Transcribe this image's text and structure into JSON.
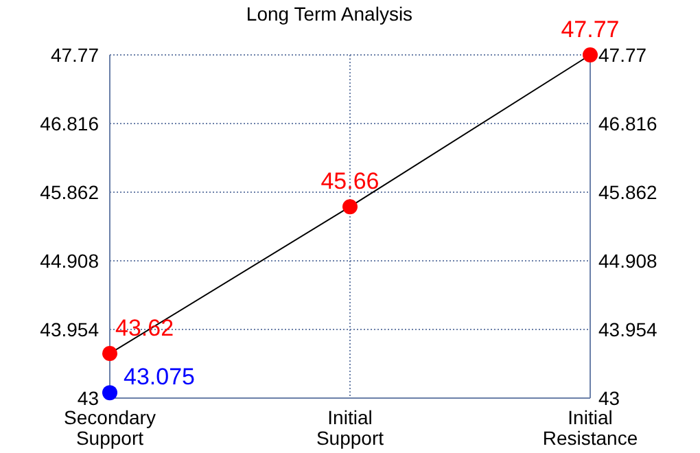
{
  "chart_data": {
    "type": "line",
    "title": "Long Term Analysis",
    "categories": [
      "Secondary Support",
      "Initial Support",
      "Initial Resistance"
    ],
    "ylim": [
      43,
      47.77
    ],
    "yticks": [
      43,
      43.954,
      44.908,
      45.862,
      46.816,
      47.77
    ],
    "y2lim": [
      43,
      47.77
    ],
    "y2ticks": [
      43,
      43.954,
      44.908,
      45.862,
      46.816,
      47.77
    ],
    "grid": true,
    "series": [
      {
        "color": "#000000",
        "marker": "none",
        "values": [
          43.62,
          45.66,
          47.77
        ]
      },
      {
        "type": "scatter",
        "color": "#ff0000",
        "marker": "circle",
        "values": [
          43.62,
          45.66,
          47.77
        ],
        "value_labels": [
          "43.62",
          "45.66",
          "47.77"
        ]
      },
      {
        "type": "scatter",
        "color": "#0000ff",
        "marker": "circle",
        "x": [
          "Secondary Support"
        ],
        "values": [
          43.075
        ],
        "value_labels": [
          "43.075"
        ]
      }
    ]
  }
}
